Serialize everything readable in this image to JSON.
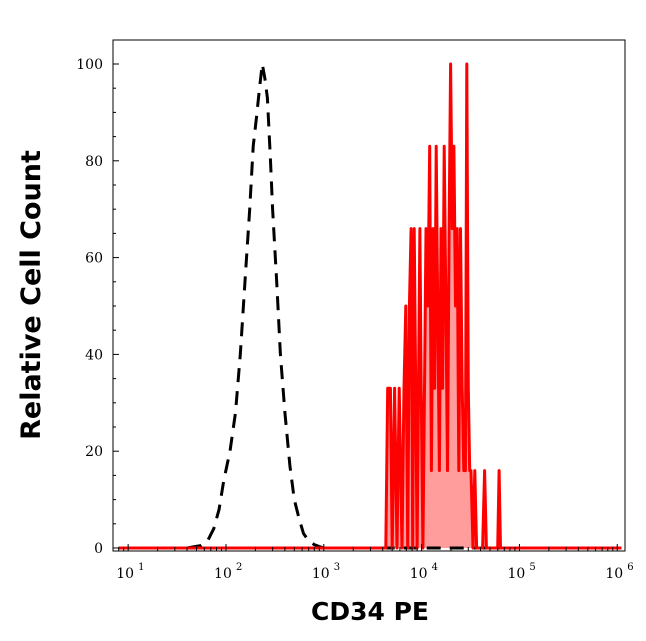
{
  "chart_data": {
    "type": "area",
    "xlabel": "CD34 PE",
    "ylabel": "Relative Cell Count",
    "x_scale": "log",
    "xlim": [
      7,
      1200000
    ],
    "ylim": [
      0,
      100
    ],
    "x_ticks": [
      {
        "base": "10",
        "exp": "1",
        "value": 10
      },
      {
        "base": "10",
        "exp": "2",
        "value": 100
      },
      {
        "base": "10",
        "exp": "3",
        "value": 1000
      },
      {
        "base": "10",
        "exp": "4",
        "value": 10000
      },
      {
        "base": "10",
        "exp": "5",
        "value": 100000
      },
      {
        "base": "10",
        "exp": "6",
        "value": 1000000
      }
    ],
    "y_ticks": [
      "0",
      "20",
      "40",
      "60",
      "80",
      "100"
    ],
    "series": [
      {
        "style": "dashed",
        "color": "#000000",
        "fill": "none",
        "points": [
          [
            8,
            0
          ],
          [
            20,
            0
          ],
          [
            40,
            0
          ],
          [
            55,
            0.5
          ],
          [
            65,
            1.5
          ],
          [
            75,
            4
          ],
          [
            85,
            8
          ],
          [
            95,
            14
          ],
          [
            110,
            20
          ],
          [
            125,
            28
          ],
          [
            140,
            40
          ],
          [
            160,
            58
          ],
          [
            175,
            70
          ],
          [
            190,
            83
          ],
          [
            205,
            89
          ],
          [
            220,
            95
          ],
          [
            235,
            100
          ],
          [
            250,
            97
          ],
          [
            265,
            93
          ],
          [
            285,
            80
          ],
          [
            300,
            70
          ],
          [
            330,
            55
          ],
          [
            360,
            40
          ],
          [
            400,
            28
          ],
          [
            450,
            17
          ],
          [
            500,
            10
          ],
          [
            560,
            6
          ],
          [
            620,
            3
          ],
          [
            700,
            1.5
          ],
          [
            800,
            0.7
          ],
          [
            900,
            0.3
          ],
          [
            1000,
            0
          ],
          [
            2000,
            0
          ],
          [
            5000,
            0
          ],
          [
            20000,
            0
          ],
          [
            100000,
            0
          ],
          [
            1100000,
            0
          ]
        ]
      },
      {
        "style": "solid",
        "color": "#ff0000",
        "fill": "#ff9c9c",
        "points": [
          [
            8,
            0
          ],
          [
            4300,
            0
          ],
          [
            4500,
            33
          ],
          [
            4800,
            33
          ],
          [
            5000,
            0
          ],
          [
            5300,
            33
          ],
          [
            5600,
            0
          ],
          [
            5900,
            33
          ],
          [
            6300,
            0
          ],
          [
            6600,
            33
          ],
          [
            6900,
            50
          ],
          [
            7200,
            0
          ],
          [
            7500,
            50
          ],
          [
            7800,
            66
          ],
          [
            8100,
            0
          ],
          [
            8400,
            66
          ],
          [
            8700,
            33
          ],
          [
            9000,
            0
          ],
          [
            9300,
            33
          ],
          [
            9600,
            66
          ],
          [
            9900,
            33
          ],
          [
            10300,
            0
          ],
          [
            10700,
            33
          ],
          [
            11100,
            66
          ],
          [
            11600,
            50
          ],
          [
            12100,
            83
          ],
          [
            12600,
            16
          ],
          [
            13100,
            66
          ],
          [
            13600,
            33
          ],
          [
            14100,
            83
          ],
          [
            14600,
            50
          ],
          [
            15200,
            16
          ],
          [
            15800,
            66
          ],
          [
            16400,
            33
          ],
          [
            17000,
            83
          ],
          [
            17700,
            50
          ],
          [
            18400,
            16
          ],
          [
            19100,
            66
          ],
          [
            19800,
            100
          ],
          [
            20600,
            66
          ],
          [
            21400,
            83
          ],
          [
            22200,
            50
          ],
          [
            23100,
            66
          ],
          [
            24000,
            16
          ],
          [
            25000,
            66
          ],
          [
            26000,
            33
          ],
          [
            27000,
            16
          ],
          [
            28000,
            16
          ],
          [
            29000,
            100
          ],
          [
            30000,
            33
          ],
          [
            31000,
            16
          ],
          [
            32000,
            16
          ],
          [
            33500,
            0
          ],
          [
            35000,
            16
          ],
          [
            36500,
            0
          ],
          [
            38000,
            0
          ],
          [
            42000,
            0
          ],
          [
            44000,
            16
          ],
          [
            46000,
            0
          ],
          [
            60000,
            0
          ],
          [
            62000,
            16
          ],
          [
            64000,
            0
          ],
          [
            1100000,
            0
          ]
        ]
      }
    ]
  }
}
